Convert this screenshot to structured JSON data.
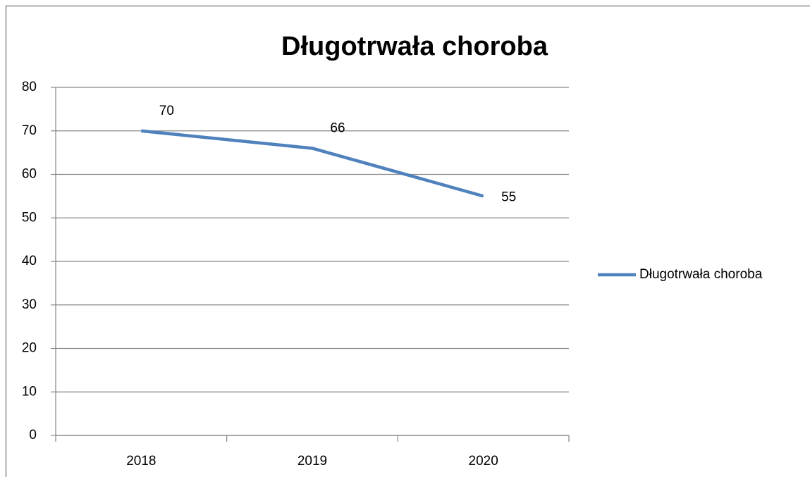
{
  "chart_data": {
    "type": "line",
    "title": "Długotrwała choroba",
    "categories": [
      "2018",
      "2019",
      "2020"
    ],
    "series": [
      {
        "name": "Długotrwała choroba",
        "color": "#4f81bd",
        "values": [
          70,
          66,
          55
        ]
      }
    ],
    "ylim": [
      0,
      80
    ],
    "yticks": [
      0,
      10,
      20,
      30,
      40,
      50,
      60,
      70,
      80
    ],
    "grid": true,
    "legend": "right"
  }
}
